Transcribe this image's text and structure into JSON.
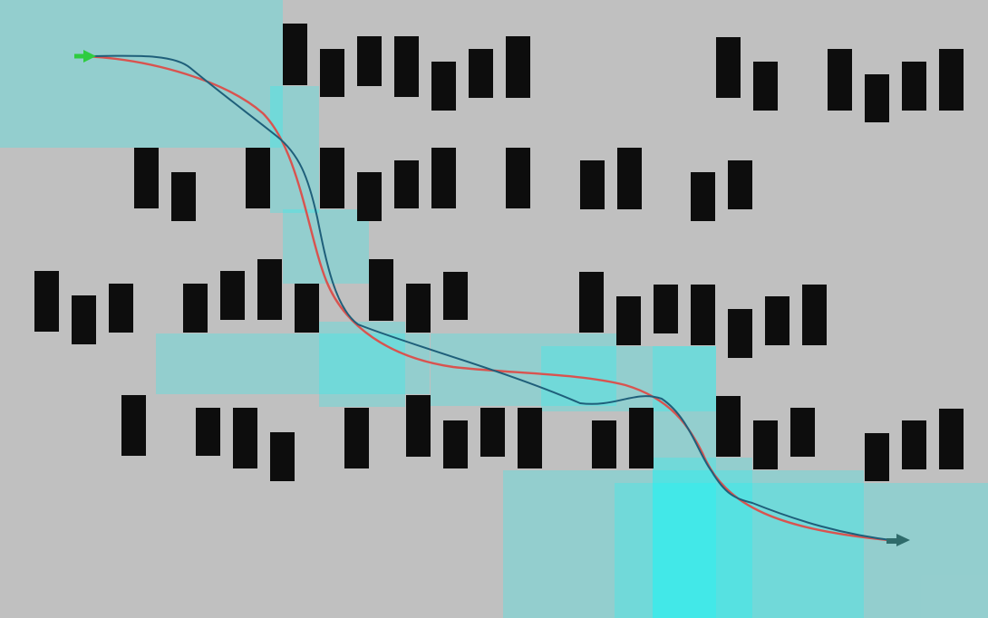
{
  "scene": {
    "background_color": "#c0c0c0",
    "obstacle_color": "#0d0d0d",
    "region_color": "#00ffff",
    "region_opacity": 0.23,
    "planned_path_color": "#d9534f",
    "executed_path_color": "#1f5f7a",
    "start_marker_color": "#2ecc40",
    "goal_marker_color": "#2f6b6b"
  }
}
